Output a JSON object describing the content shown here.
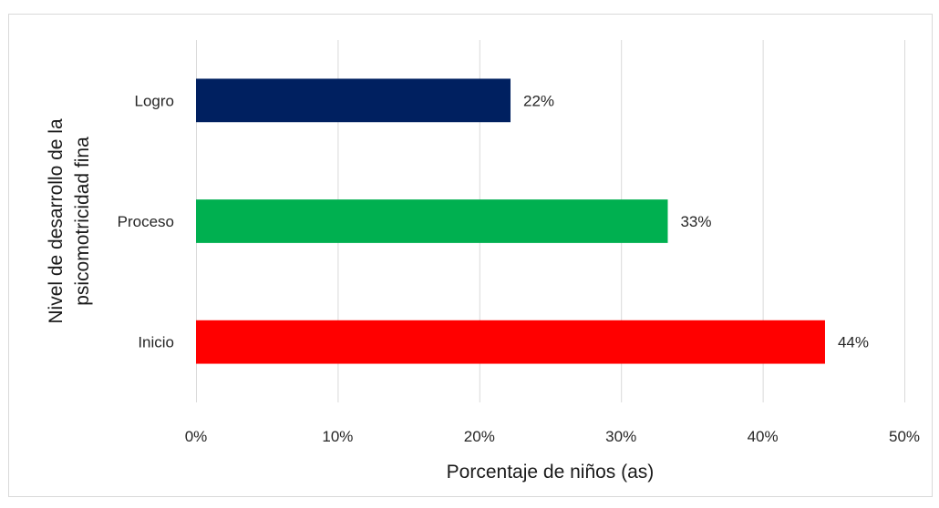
{
  "chart_data": {
    "type": "bar",
    "orientation": "horizontal",
    "title": "",
    "xlabel": "Porcentaje de niños (as)",
    "ylabel": [
      "Nivel de desarrollo de la",
      "psicomotricidad fina"
    ],
    "categories": [
      "Logro",
      "Proceso",
      "Inicio"
    ],
    "values": [
      22.2,
      33.3,
      44.4
    ],
    "value_labels": [
      "22%",
      "33%",
      "44%"
    ],
    "colors": [
      "#002060",
      "#00b050",
      "#ff0000"
    ],
    "xlim": [
      0,
      50
    ],
    "xticks": [
      0,
      10,
      20,
      30,
      40,
      50
    ],
    "xtick_labels": [
      "0%",
      "10%",
      "20%",
      "30%",
      "40%",
      "50%"
    ],
    "grid": "vertical",
    "legend": "none"
  }
}
